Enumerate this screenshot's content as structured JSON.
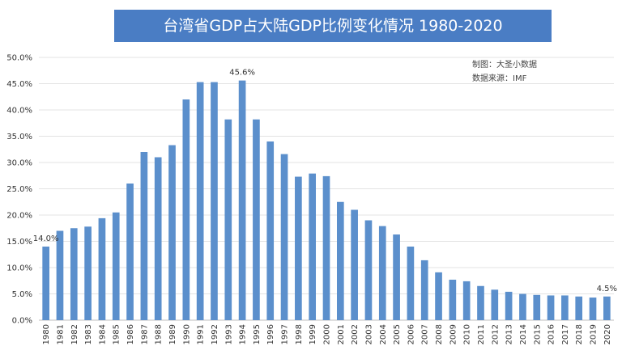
{
  "chart_data": {
    "type": "bar",
    "title": "台湾省GDP占大陆GDP比例变化情况 1980-2020",
    "notes": [
      "制图：大圣小数据",
      "数据来源：IMF"
    ],
    "categories": [
      "1980",
      "1981",
      "1982",
      "1983",
      "1984",
      "1985",
      "1986",
      "1987",
      "1988",
      "1989",
      "1990",
      "1991",
      "1992",
      "1993",
      "1994",
      "1995",
      "1996",
      "1997",
      "1998",
      "1999",
      "2000",
      "2001",
      "2002",
      "2003",
      "2004",
      "2005",
      "2006",
      "2007",
      "2008",
      "2009",
      "2010",
      "2011",
      "2012",
      "2013",
      "2014",
      "2015",
      "2016",
      "2017",
      "2018",
      "2019",
      "2020"
    ],
    "values": [
      14.0,
      17.0,
      17.5,
      17.8,
      19.4,
      20.5,
      26.0,
      32.0,
      31.0,
      33.3,
      42.0,
      45.3,
      45.3,
      38.2,
      45.6,
      38.2,
      34.0,
      31.6,
      27.3,
      27.9,
      27.4,
      22.5,
      21.0,
      19.0,
      17.9,
      16.3,
      14.0,
      11.4,
      9.1,
      7.7,
      7.4,
      6.5,
      5.8,
      5.4,
      5.0,
      4.8,
      4.7,
      4.7,
      4.5,
      4.3,
      4.5
    ],
    "data_labels": [
      {
        "category": "1980",
        "text": "14.0%"
      },
      {
        "category": "1994",
        "text": "45.6%"
      },
      {
        "category": "2020",
        "text": "4.5%"
      }
    ],
    "yticks": [
      "0.0%",
      "5.0%",
      "10.0%",
      "15.0%",
      "20.0%",
      "25.0%",
      "30.0%",
      "35.0%",
      "40.0%",
      "45.0%",
      "50.0%"
    ],
    "ylim": [
      0,
      50
    ],
    "xlabel": "",
    "ylabel": "",
    "grid": true,
    "bar_color": "#5b8fcc"
  }
}
